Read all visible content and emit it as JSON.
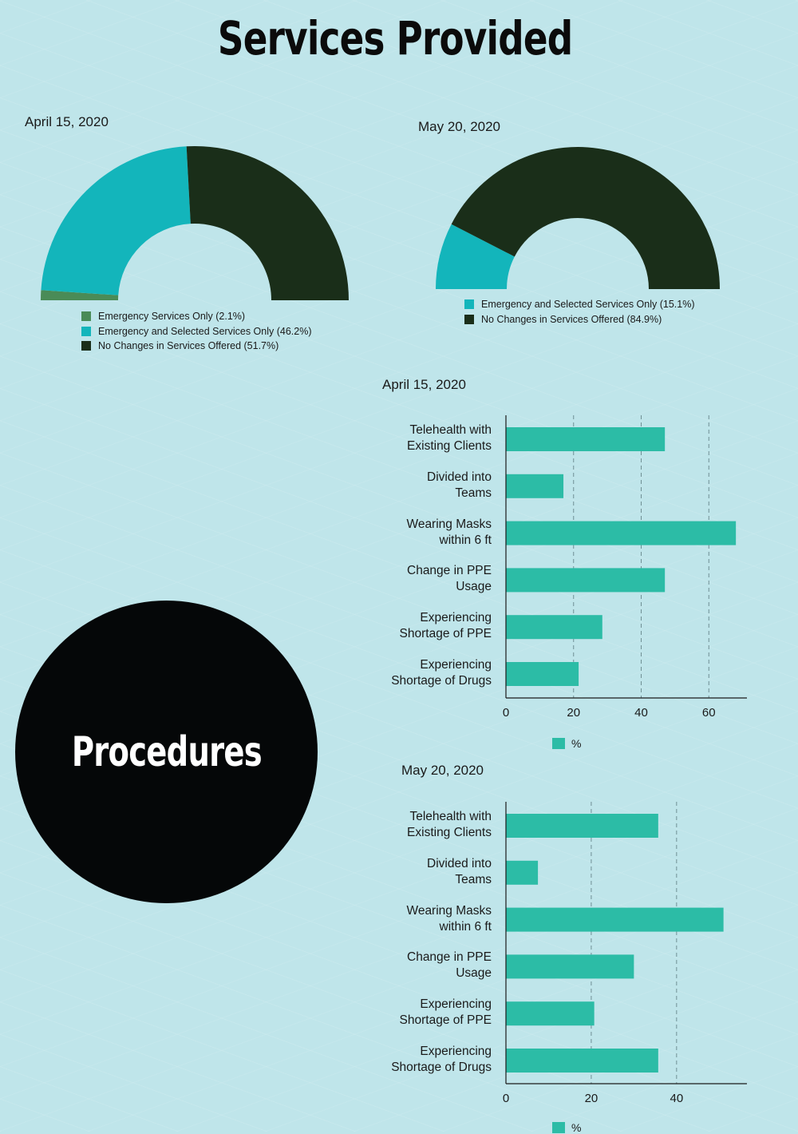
{
  "page_title": "Services Provided",
  "circle_label": "Procedures",
  "colors": {
    "background": "#bfe5ea",
    "emergency_only": "#4a8b57",
    "emergency_selected": "#13b5bb",
    "no_changes": "#1a2e19",
    "bar": "#2cbca6"
  },
  "chart_data": [
    {
      "type": "pie",
      "variant": "half-donut",
      "title": "April 15, 2020",
      "slices": [
        {
          "label": "Emergency Services Only (2.1%)",
          "value": 2.1,
          "color": "#4a8b57"
        },
        {
          "label": "Emergency and Selected Services Only (46.2%)",
          "value": 46.2,
          "color": "#13b5bb"
        },
        {
          "label": "No Changes in Services Offered (51.7%)",
          "value": 51.7,
          "color": "#1a2e19"
        }
      ],
      "legend_position": "bottom"
    },
    {
      "type": "pie",
      "variant": "half-donut",
      "title": "May 20, 2020",
      "slices": [
        {
          "label": "Emergency and Selected Services Only (15.1%)",
          "value": 15.1,
          "color": "#13b5bb"
        },
        {
          "label": "No Changes in Services Offered (84.9%)",
          "value": 84.9,
          "color": "#1a2e19"
        }
      ],
      "legend_position": "bottom"
    },
    {
      "type": "bar",
      "orientation": "horizontal",
      "title": "April 15, 2020",
      "categories": [
        [
          "Telehealth with",
          "Existing Clients"
        ],
        [
          "Divided into",
          "Teams"
        ],
        [
          "Wearing Masks",
          "within 6 ft"
        ],
        [
          "Change in PPE",
          "Usage"
        ],
        [
          "Experiencing",
          "Shortage of PPE"
        ],
        [
          "Experiencing",
          "Shortage of Drugs"
        ]
      ],
      "series": [
        {
          "name": "%",
          "values": [
            47,
            17,
            68,
            47,
            28.5,
            21.5
          ]
        }
      ],
      "xlim": [
        0,
        71.5
      ],
      "xticks": [
        0,
        20,
        40,
        60
      ],
      "grid": true,
      "legend_position": "bottom"
    },
    {
      "type": "bar",
      "orientation": "horizontal",
      "title": "May 20, 2020",
      "categories": [
        [
          "Telehealth with",
          "Existing Clients"
        ],
        [
          "Divided into",
          "Teams"
        ],
        [
          "Wearing Masks",
          "within 6 ft"
        ],
        [
          "Change in PPE",
          "Usage"
        ],
        [
          "Experiencing",
          "Shortage of PPE"
        ],
        [
          "Experiencing",
          "Shortage of Drugs"
        ]
      ],
      "series": [
        {
          "name": "%",
          "values": [
            35.7,
            7.5,
            51,
            30,
            20.7,
            35.7
          ]
        }
      ],
      "xlim": [
        0,
        53.5
      ],
      "xticks": [
        0,
        20,
        40
      ],
      "grid": true,
      "legend_position": "bottom"
    }
  ]
}
